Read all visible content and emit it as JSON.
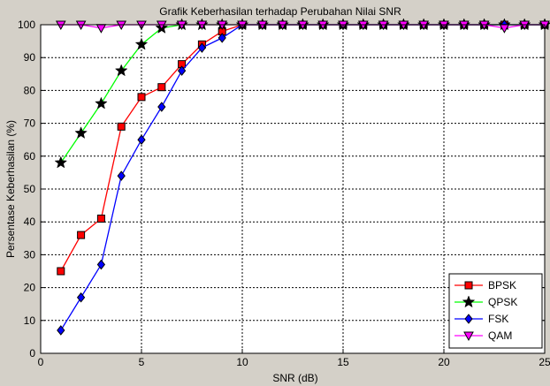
{
  "chart_data": {
    "type": "line",
    "title": "Grafik Keberhasilan terhadap Perubahan Nilai SNR",
    "xlabel": "SNR (dB)",
    "ylabel": "Persentase Keberhasilan (%)",
    "xlim": [
      0,
      25
    ],
    "ylim": [
      0,
      100
    ],
    "xticks": [
      0,
      5,
      10,
      15,
      20,
      25
    ],
    "yticks": [
      0,
      10,
      20,
      30,
      40,
      50,
      60,
      70,
      80,
      90,
      100
    ],
    "grid": true,
    "legend_position": "bottom-right",
    "x": [
      1,
      2,
      3,
      4,
      5,
      6,
      7,
      8,
      9,
      10,
      11,
      12,
      13,
      14,
      15,
      16,
      17,
      18,
      19,
      20,
      21,
      22,
      23,
      24,
      25
    ],
    "series": [
      {
        "name": "BPSK",
        "color": "#ff0000",
        "marker": "square",
        "values": [
          25,
          36,
          41,
          69,
          78,
          81,
          88,
          94,
          98,
          100,
          100,
          100,
          100,
          100,
          100,
          100,
          100,
          100,
          100,
          100,
          100,
          100,
          100,
          100,
          100
        ]
      },
      {
        "name": "QPSK",
        "color": "#00ff00",
        "marker": "star",
        "values": [
          58,
          67,
          76,
          86,
          94,
          99,
          100,
          100,
          100,
          100,
          100,
          100,
          100,
          100,
          100,
          100,
          100,
          100,
          100,
          100,
          100,
          100,
          100,
          100,
          100
        ]
      },
      {
        "name": "FSK",
        "color": "#0000ff",
        "marker": "diamond",
        "values": [
          7,
          17,
          27,
          54,
          65,
          75,
          86,
          93,
          96,
          100,
          100,
          100,
          100,
          100,
          100,
          100,
          100,
          100,
          100,
          100,
          100,
          100,
          100,
          100,
          100
        ]
      },
      {
        "name": "QAM",
        "color": "#ff00ff",
        "marker": "triangle-down",
        "values": [
          100,
          100,
          99,
          100,
          100,
          100,
          100,
          100,
          100,
          100,
          100,
          100,
          100,
          100,
          100,
          100,
          100,
          100,
          100,
          100,
          100,
          100,
          99,
          100,
          100
        ]
      }
    ]
  }
}
